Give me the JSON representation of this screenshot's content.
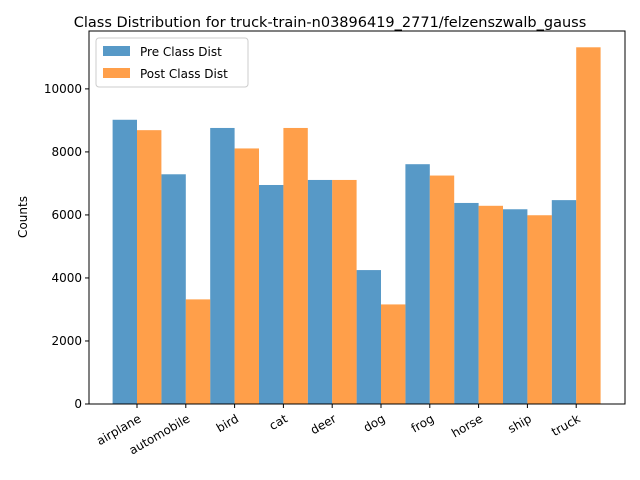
{
  "chart_data": {
    "type": "bar",
    "title": "Class Distribution for truck-train-n03896419_2771/felzenszwalb_gauss",
    "xlabel": "",
    "ylabel": "Counts",
    "ylim": [
      0,
      11837
    ],
    "yticks": [
      0,
      2000,
      4000,
      6000,
      8000,
      10000
    ],
    "categories": [
      "airplane",
      "automobile",
      "bird",
      "cat",
      "deer",
      "dog",
      "frog",
      "horse",
      "ship",
      "truck"
    ],
    "series": [
      {
        "name": "Pre Class Dist",
        "color": "#1f77b4",
        "values": [
          9020,
          7290,
          8760,
          6950,
          7110,
          4250,
          7610,
          6380,
          6180,
          6470
        ]
      },
      {
        "name": "Post Class Dist",
        "color": "#ff7f0e",
        "values": [
          8690,
          3320,
          8110,
          8760,
          7110,
          3160,
          7250,
          6290,
          5990,
          11320
        ]
      }
    ],
    "legend_position": "upper-left",
    "grid": false
  }
}
